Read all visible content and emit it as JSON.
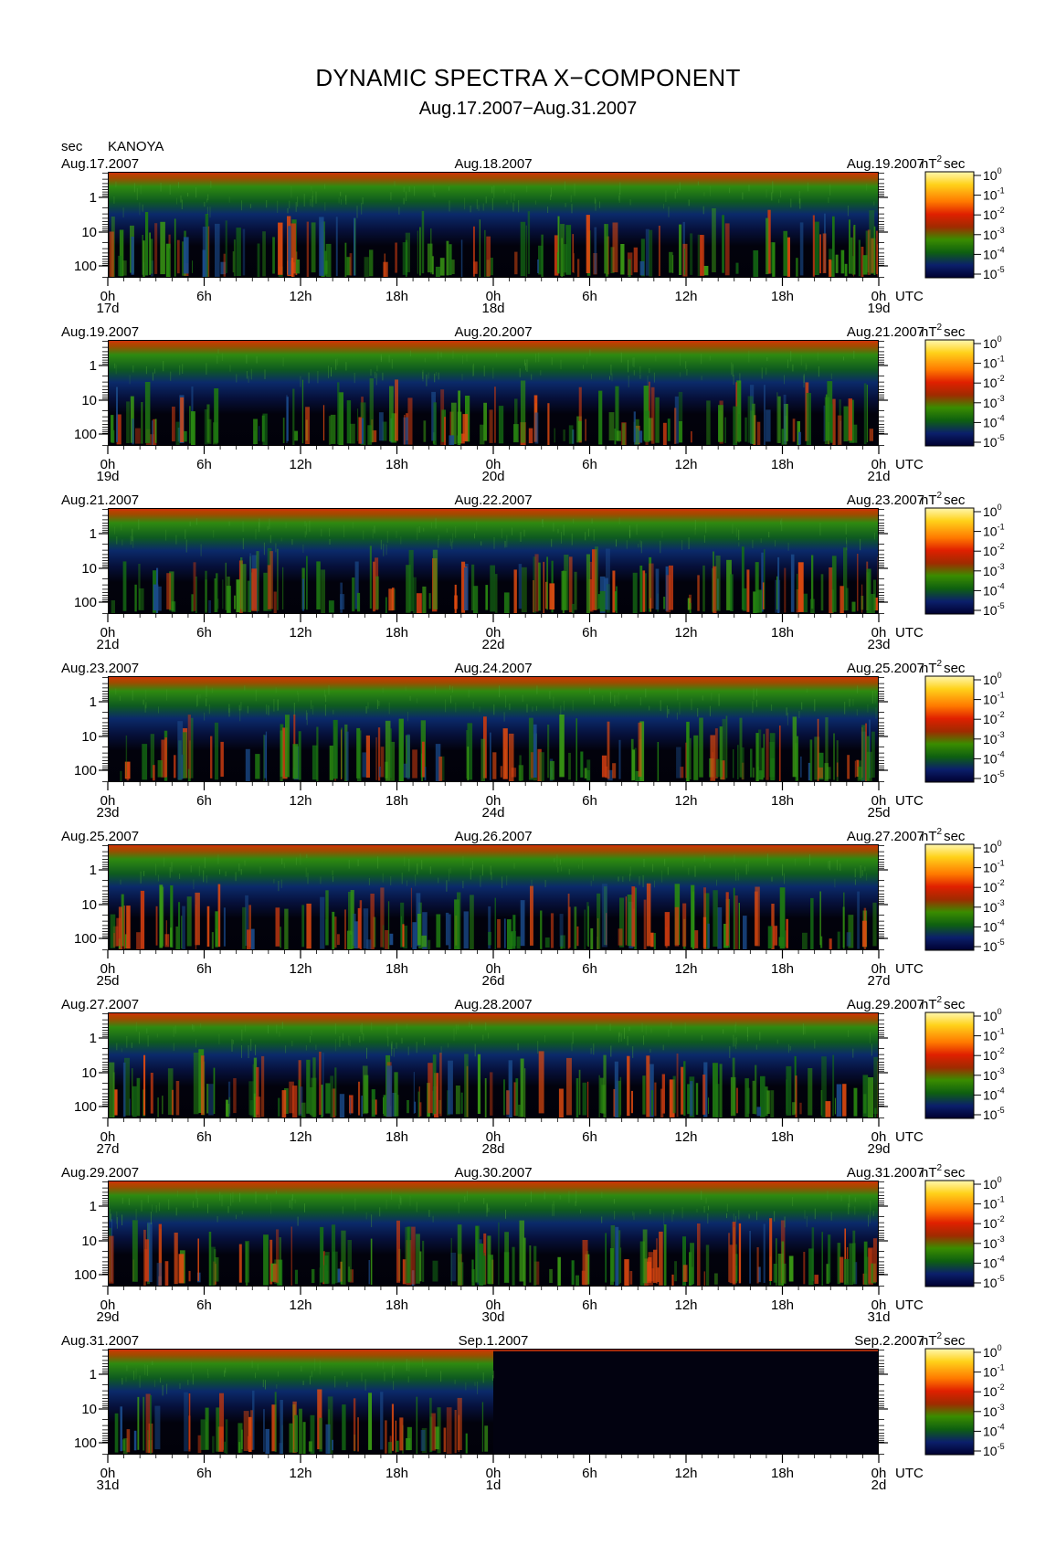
{
  "header": {
    "title": "DYNAMIC SPECTRA X−COMPONENT",
    "subtitle": "Aug.17.2007−Aug.31.2007",
    "y_unit": "sec",
    "station": "KANOYA"
  },
  "colorbar": {
    "unit_base": "nT",
    "unit_exp": "2",
    "unit_suffix": "sec",
    "ticks": [
      {
        "base": "10",
        "exp": "0"
      },
      {
        "base": "10",
        "exp": "-1"
      },
      {
        "base": "10",
        "exp": "-2"
      },
      {
        "base": "10",
        "exp": "-3"
      },
      {
        "base": "10",
        "exp": "-4"
      },
      {
        "base": "10",
        "exp": "-5"
      }
    ],
    "colors": [
      "#fff5a0",
      "#ffd000",
      "#ff7a00",
      "#e01e00",
      "#a02a00",
      "#3a8a00",
      "#0f6f10",
      "#0b1f6b",
      "#000033"
    ]
  },
  "x_tick_labels": [
    "0h",
    "6h",
    "12h",
    "18h",
    "0h",
    "6h",
    "12h",
    "18h",
    "0h"
  ],
  "x_unit": "UTC",
  "y_tick_labels": [
    "1",
    "10",
    "100"
  ],
  "chart_data": {
    "type": "heatmap",
    "title": "DYNAMIC SPECTRA X−COMPONENT",
    "subtitle": "Aug.17.2007−Aug.31.2007",
    "station": "KANOYA",
    "ylabel": "sec",
    "y_scale": "log",
    "y_ticks": [
      1,
      10,
      100
    ],
    "y_direction": "period increases downward",
    "x_hour_ticks": [
      0,
      6,
      12,
      18,
      24,
      30,
      36,
      42,
      48
    ],
    "colorscale_range": [
      "10^-5",
      "10^0"
    ],
    "colorscale_unit": "nT^2 sec",
    "panels": [
      {
        "date_left": "Aug.17.2007",
        "date_mid": "Aug.18.2007",
        "date_right": "Aug.19.2007",
        "day_left": "17d",
        "day_mid": "18d",
        "day_right": "19d",
        "data_fraction": 1.0
      },
      {
        "date_left": "Aug.19.2007",
        "date_mid": "Aug.20.2007",
        "date_right": "Aug.21.2007",
        "day_left": "19d",
        "day_mid": "20d",
        "day_right": "21d",
        "data_fraction": 1.0
      },
      {
        "date_left": "Aug.21.2007",
        "date_mid": "Aug.22.2007",
        "date_right": "Aug.23.2007",
        "day_left": "21d",
        "day_mid": "22d",
        "day_right": "23d",
        "data_fraction": 1.0
      },
      {
        "date_left": "Aug.23.2007",
        "date_mid": "Aug.24.2007",
        "date_right": "Aug.25.2007",
        "day_left": "23d",
        "day_mid": "24d",
        "day_right": "25d",
        "data_fraction": 1.0
      },
      {
        "date_left": "Aug.25.2007",
        "date_mid": "Aug.26.2007",
        "date_right": "Aug.27.2007",
        "day_left": "25d",
        "day_mid": "26d",
        "day_right": "27d",
        "data_fraction": 1.0
      },
      {
        "date_left": "Aug.27.2007",
        "date_mid": "Aug.28.2007",
        "date_right": "Aug.29.2007",
        "day_left": "27d",
        "day_mid": "28d",
        "day_right": "29d",
        "data_fraction": 1.0
      },
      {
        "date_left": "Aug.29.2007",
        "date_mid": "Aug.30.2007",
        "date_right": "Aug.31.2007",
        "day_left": "29d",
        "day_mid": "30d",
        "day_right": "31d",
        "data_fraction": 1.0
      },
      {
        "date_left": "Aug.31.2007",
        "date_mid": "Sep.1.2007",
        "date_right": "Sep.2.2007",
        "day_left": "31d",
        "day_mid": "1d",
        "day_right": "2d",
        "data_fraction": 0.5
      }
    ]
  }
}
